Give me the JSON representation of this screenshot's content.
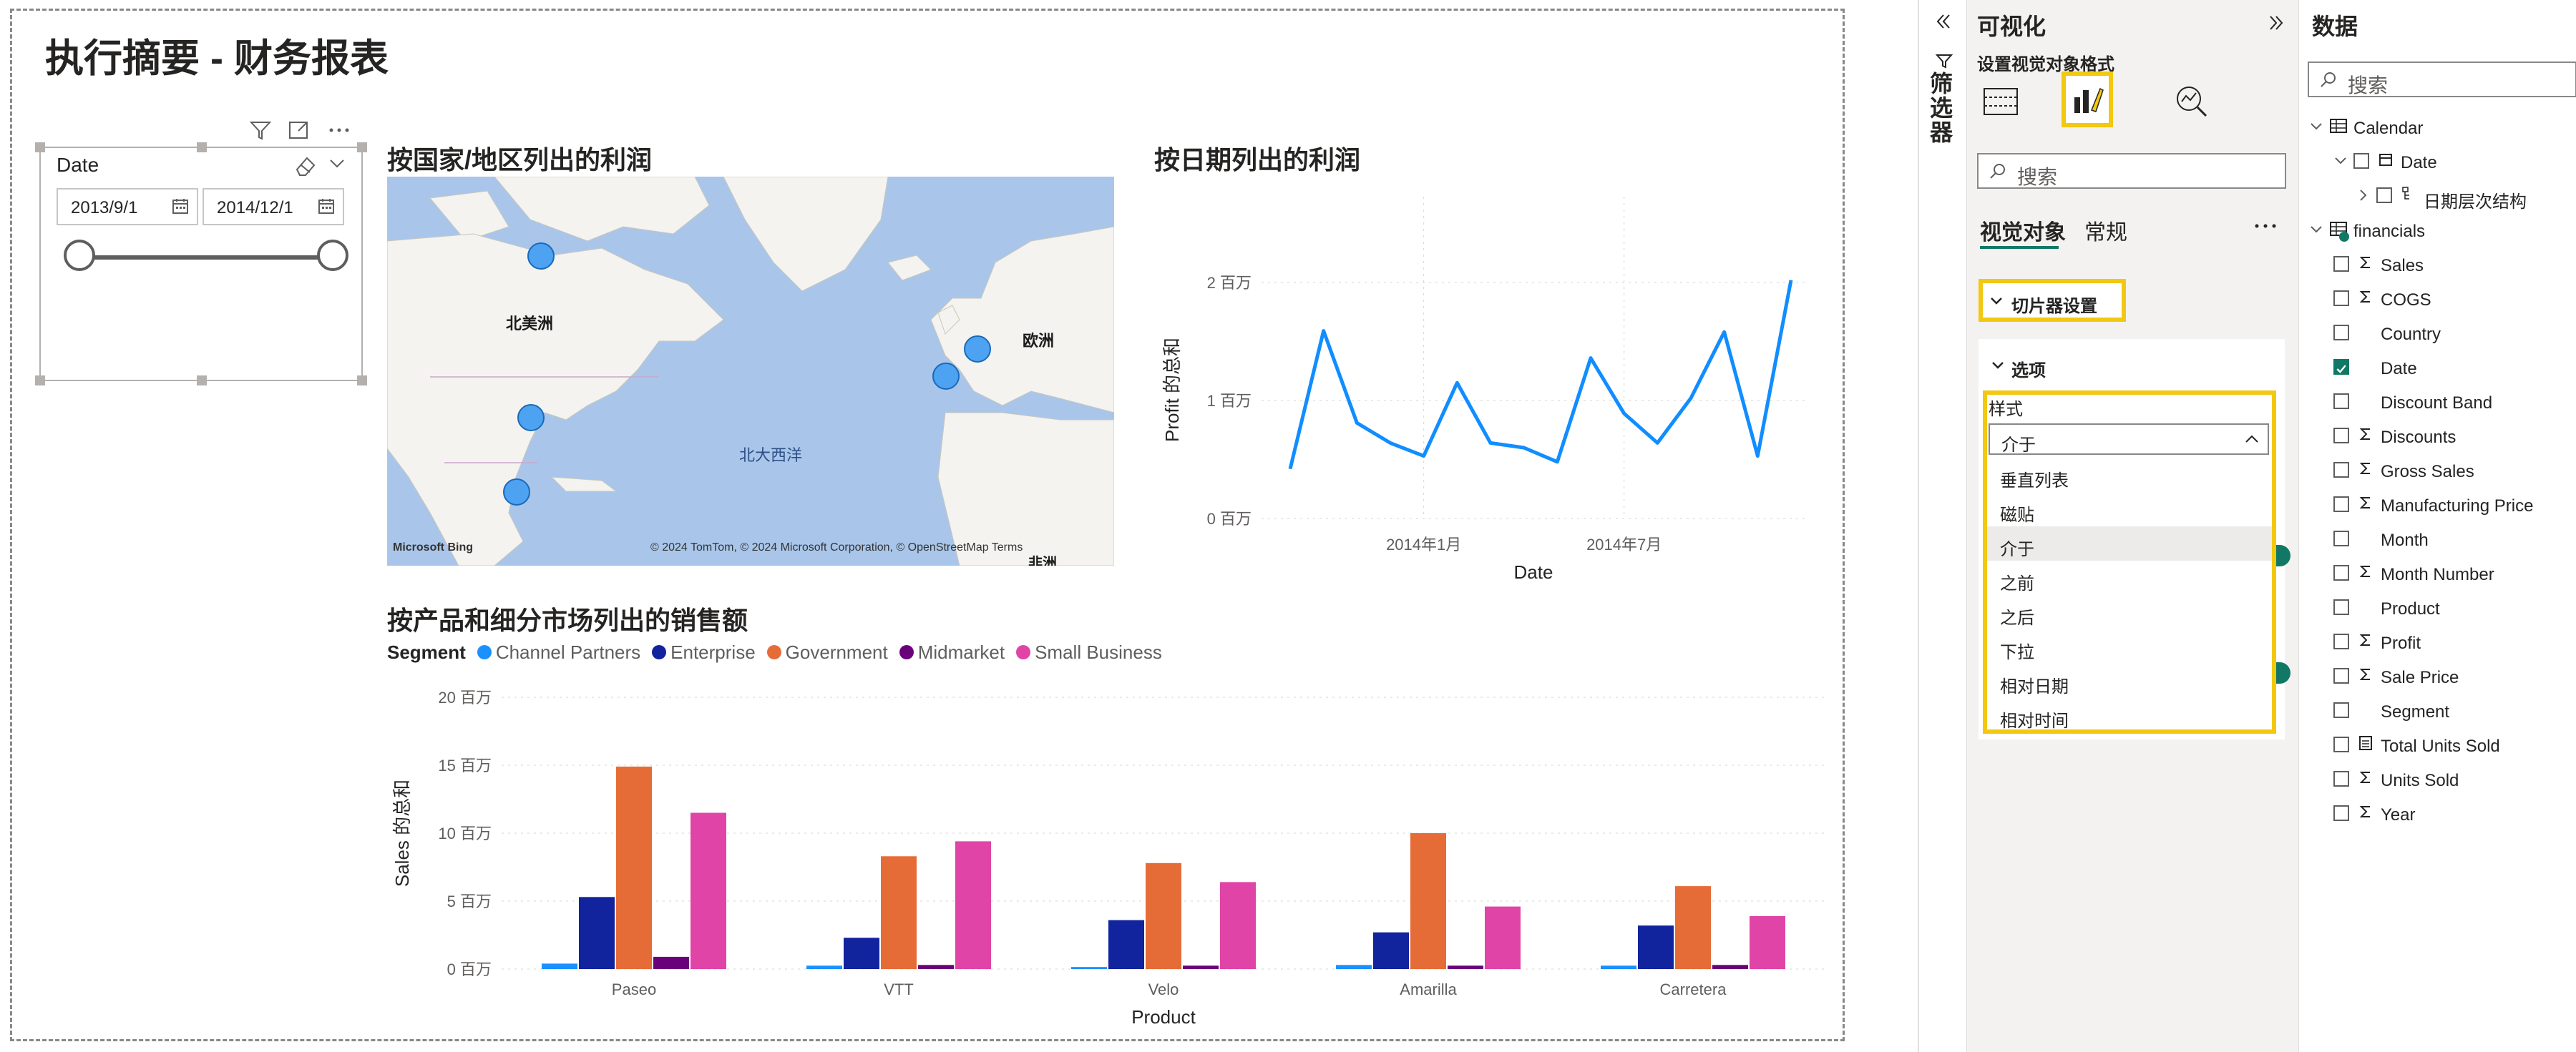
{
  "report": {
    "title": "执行摘要 - 财务报表",
    "slicer": {
      "title": "Date",
      "start_date": "2013/9/1",
      "end_date": "2014/12/1"
    },
    "map": {
      "title": "按国家/地区列出的利润",
      "labels": {
        "north_america": "北美洲",
        "europe": "欧洲",
        "atlantic": "北大西洋",
        "africa": "非洲"
      },
      "attribution": "© 2024 TomTom, © 2024 Microsoft Corporation, © OpenStreetMap",
      "terms": "Terms",
      "bing": "Microsoft Bing"
    },
    "line_chart": {
      "title": "按日期列出的利润"
    },
    "bar_chart": {
      "title": "按产品和细分市场列出的销售额",
      "legend_title": "Segment"
    }
  },
  "chart_data": [
    {
      "type": "line",
      "title": "按日期列出的利润",
      "xlabel": "Date",
      "ylabel": "Profit 的总和",
      "x_tick_labels": [
        "2014年1月",
        "2014年7月"
      ],
      "y_tick_labels": [
        "0 百万",
        "1 百万",
        "2 百万"
      ],
      "ylim": [
        0,
        2000000
      ],
      "x": [
        "2013-09",
        "2013-10",
        "2013-11",
        "2013-12",
        "2014-01",
        "2014-02",
        "2014-03",
        "2014-04",
        "2014-05",
        "2014-06",
        "2014-07",
        "2014-08",
        "2014-09",
        "2014-10",
        "2014-11",
        "2014-12"
      ],
      "series": [
        {
          "values": [
            420000,
            1590000,
            810000,
            640000,
            530000,
            1150000,
            640000,
            600000,
            480000,
            1360000,
            890000,
            640000,
            1020000,
            1580000,
            530000,
            2020000
          ]
        }
      ]
    },
    {
      "type": "bar",
      "title": "按产品和细分市场列出的销售额",
      "xlabel": "Product",
      "ylabel": "Sales 的总和",
      "y_tick_labels": [
        "0 百万",
        "5 百万",
        "10 百万",
        "15 百万",
        "20 百万"
      ],
      "ylim": [
        0,
        20000000
      ],
      "categories": [
        "Paseo",
        "VTT",
        "Velo",
        "Amarilla",
        "Carretera"
      ],
      "series": [
        {
          "name": "Channel Partners",
          "values": [
            400000,
            250000,
            150000,
            300000,
            250000
          ]
        },
        {
          "name": "Enterprise",
          "values": [
            5300000,
            2300000,
            3600000,
            2700000,
            3200000
          ]
        },
        {
          "name": "Government",
          "values": [
            14900000,
            8300000,
            7800000,
            10000000,
            6100000
          ]
        },
        {
          "name": "Midmarket",
          "values": [
            900000,
            300000,
            250000,
            250000,
            300000
          ]
        },
        {
          "name": "Small Business",
          "values": [
            11500000,
            9400000,
            6400000,
            4600000,
            3900000
          ]
        }
      ]
    }
  ],
  "colors": {
    "line": "#118dff",
    "series": [
      "#1a91ff",
      "#12239e",
      "#e66c37",
      "#6b007b",
      "#e044a7"
    ],
    "highlight": "#f2c811"
  },
  "filters_pane": {
    "label": "筛选器"
  },
  "viz_pane": {
    "title": "可视化",
    "subtitle": "设置视觉对象格式",
    "search_placeholder": "搜索",
    "tabs": [
      "视觉对象",
      "常规"
    ],
    "section": "切片器设置",
    "options_label": "选项",
    "style_label": "样式",
    "style_selected": "介于",
    "style_options": [
      "垂直列表",
      "磁贴",
      "介于",
      "之前",
      "之后",
      "下拉",
      "相对日期",
      "相对时间"
    ]
  },
  "data_pane": {
    "title": "数据",
    "search_placeholder": "搜索",
    "tables": [
      {
        "name": "Calendar",
        "fields": [
          {
            "name": "Date",
            "type": "date"
          },
          {
            "name": "日期层次结构",
            "type": "hierarchy"
          }
        ]
      },
      {
        "name": "financials",
        "fields": [
          {
            "name": "Sales",
            "type": "sigma",
            "checked": false
          },
          {
            "name": "COGS",
            "type": "sigma",
            "checked": false
          },
          {
            "name": "Country",
            "type": "text",
            "checked": false
          },
          {
            "name": "Date",
            "type": "text",
            "checked": true
          },
          {
            "name": "Discount Band",
            "type": "text",
            "checked": false
          },
          {
            "name": "Discounts",
            "type": "sigma",
            "checked": false
          },
          {
            "name": "Gross Sales",
            "type": "sigma",
            "checked": false
          },
          {
            "name": "Manufacturing Price",
            "type": "sigma",
            "checked": false
          },
          {
            "name": "Month",
            "type": "text",
            "checked": false
          },
          {
            "name": "Month Number",
            "type": "sigma",
            "checked": false
          },
          {
            "name": "Product",
            "type": "text",
            "checked": false
          },
          {
            "name": "Profit",
            "type": "sigma",
            "checked": false
          },
          {
            "name": "Sale Price",
            "type": "sigma",
            "checked": false
          },
          {
            "name": "Segment",
            "type": "text",
            "checked": false
          },
          {
            "name": "Total Units Sold",
            "type": "calc",
            "checked": false
          },
          {
            "name": "Units Sold",
            "type": "sigma",
            "checked": false
          },
          {
            "name": "Year",
            "type": "sigma",
            "checked": false
          }
        ]
      }
    ]
  }
}
